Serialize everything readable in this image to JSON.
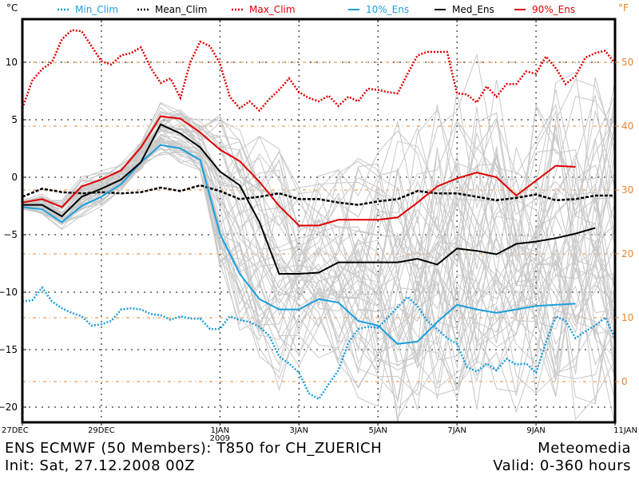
{
  "footer": {
    "title_line": "ENS ECMWF (50 Members): T850 for CH_ZUERICH",
    "init_line": "Init: Sat, 27.12.2008 00Z",
    "source": "Meteomedia",
    "valid_line": "Valid: 0-360 hours"
  },
  "colors": {
    "clim_min": "#1a9fdc",
    "clim_mean": "#000000",
    "clim_max": "#e00000",
    "ens10": "#1a9fdc",
    "ensmed": "#000000",
    "ens90": "#e00000",
    "members": "#c8c8c8",
    "fahrenheit": "#e8832a"
  },
  "chart_data": {
    "type": "line",
    "title": "ENS ECMWF (50 Members): T850 for CH_ZUERICH",
    "ylabel": "°C",
    "ylabel_right": "°F",
    "xlabel": "",
    "x_units": "days since 27DEC 2008 00Z",
    "xlim": [
      0,
      15
    ],
    "ylim": [
      -21,
      13
    ],
    "grid": true,
    "x_ticks": [
      {
        "x": 0,
        "label": "27DEC"
      },
      {
        "x": 2,
        "label": "29DEC"
      },
      {
        "x": 5,
        "label": "1JAN",
        "sub": "2009"
      },
      {
        "x": 7,
        "label": "3JAN"
      },
      {
        "x": 9,
        "label": "5JAN"
      },
      {
        "x": 11,
        "label": "7JAN"
      },
      {
        "x": 13,
        "label": "9JAN"
      },
      {
        "x": 15,
        "label": "11JAN"
      }
    ],
    "y_ticks": [
      -20,
      -15,
      -10,
      -5,
      0,
      5,
      10
    ],
    "y_ticks_right_F": [
      0,
      10,
      20,
      30,
      40,
      50
    ],
    "legend": [
      "Min_Clim",
      "Mean_Clim",
      "Max_Clim",
      "10%_Ens",
      "Med_Ens",
      "90%_Ens"
    ],
    "legend_position": "top",
    "series": [
      {
        "name": "Min_Clim",
        "style": "dotted",
        "color_key": "clim_min",
        "x": [
          0,
          0.25,
          0.5,
          0.75,
          1,
          1.25,
          1.5,
          1.75,
          2,
          2.25,
          2.5,
          2.75,
          3,
          3.25,
          3.5,
          3.75,
          4,
          4.25,
          4.5,
          4.75,
          5,
          5.25,
          5.5,
          5.75,
          6,
          6.25,
          6.5,
          6.75,
          7,
          7.25,
          7.5,
          7.75,
          8,
          8.25,
          8.5,
          8.75,
          9,
          9.25,
          9.5,
          9.75,
          10,
          10.25,
          10.5,
          10.75,
          11,
          11.25,
          11.5,
          11.75,
          12,
          12.25,
          12.5,
          12.75,
          13,
          13.25,
          13.5,
          13.75,
          14,
          14.25,
          14.5,
          14.75,
          15
        ],
        "values": [
          -10.8,
          -10.7,
          -9.6,
          -10.8,
          -11.4,
          -11.8,
          -12.1,
          -12.9,
          -12.8,
          -12.5,
          -11.5,
          -11.4,
          -11.5,
          -11.9,
          -12.0,
          -12.4,
          -12.1,
          -12.3,
          -12.3,
          -13.2,
          -13.2,
          -12.1,
          -12.4,
          -12.6,
          -13.0,
          -13.8,
          -15.6,
          -16.2,
          -17.0,
          -18.8,
          -19.3,
          -18.0,
          -16.8,
          -14.4,
          -13.2,
          -13.0,
          -13.1,
          -12.2,
          -11.3,
          -10.4,
          -11.2,
          -12.5,
          -13.2,
          -14.0,
          -14.5,
          -16.5,
          -16.9,
          -16.2,
          -16.8,
          -15.8,
          -16.3,
          -16.2,
          -17.0,
          -14.4,
          -12.1,
          -12.5,
          -14.0,
          -13.4,
          -12.9,
          -12.2,
          -14.0
        ]
      },
      {
        "name": "Mean_Clim",
        "style": "dashed",
        "color_key": "clim_mean",
        "x": [
          0,
          0.5,
          1,
          1.5,
          2,
          2.5,
          3,
          3.5,
          4,
          4.5,
          5,
          5.5,
          6,
          6.5,
          7,
          7.5,
          8,
          8.5,
          9,
          9.5,
          10,
          10.5,
          11,
          11.5,
          12,
          12.5,
          13,
          13.5,
          14,
          14.5,
          15
        ],
        "values": [
          -1.7,
          -1.0,
          -1.3,
          -1.4,
          -1.3,
          -1.4,
          -1.3,
          -0.9,
          -1.2,
          -0.7,
          -1.2,
          -1.9,
          -1.7,
          -1.4,
          -1.9,
          -1.9,
          -2.2,
          -2.4,
          -2.1,
          -1.9,
          -1.2,
          -1.4,
          -1.4,
          -1.7,
          -2.0,
          -1.8,
          -1.5,
          -2.0,
          -1.9,
          -1.6,
          -1.6
        ]
      },
      {
        "name": "Max_Clim",
        "style": "dotted",
        "color_key": "clim_max",
        "x": [
          0,
          0.25,
          0.5,
          0.75,
          1,
          1.25,
          1.5,
          1.75,
          2,
          2.25,
          2.5,
          2.75,
          3,
          3.25,
          3.5,
          3.75,
          4,
          4.25,
          4.5,
          4.75,
          5,
          5.25,
          5.5,
          5.75,
          6,
          6.25,
          6.5,
          6.75,
          7,
          7.25,
          7.5,
          7.75,
          8,
          8.25,
          8.5,
          8.75,
          9,
          9.25,
          9.5,
          9.75,
          10,
          10.25,
          10.5,
          10.75,
          11,
          11.25,
          11.5,
          11.75,
          12,
          12.25,
          12.5,
          12.75,
          13,
          13.25,
          13.5,
          13.75,
          14,
          14.25,
          14.5,
          14.75,
          15
        ],
        "values": [
          6.0,
          8.4,
          9.4,
          10.0,
          12.0,
          12.8,
          12.7,
          11.4,
          10.1,
          9.8,
          10.6,
          10.8,
          11.3,
          9.5,
          8.2,
          8.6,
          6.9,
          10.0,
          11.8,
          11.4,
          9.9,
          7.0,
          6.0,
          6.6,
          5.8,
          6.8,
          7.6,
          8.6,
          7.4,
          6.9,
          6.6,
          7.1,
          6.2,
          7.0,
          6.6,
          7.7,
          7.6,
          7.4,
          7.3,
          9.0,
          10.6,
          10.9,
          10.9,
          10.9,
          7.3,
          7.2,
          6.5,
          7.9,
          7.0,
          8.1,
          8.1,
          9.2,
          9.0,
          10.5,
          9.5,
          8.1,
          8.8,
          10.4,
          10.8,
          11.0,
          9.9
        ]
      },
      {
        "name": "10%_Ens",
        "style": "solid",
        "color_key": "ens10",
        "x": [
          0,
          0.5,
          1,
          1.5,
          2,
          2.5,
          3,
          3.5,
          4,
          4.5,
          5,
          5.5,
          6,
          6.5,
          7,
          7.5,
          8,
          8.5,
          9,
          9.5,
          10,
          10.5,
          11,
          11.5,
          12,
          12.5,
          13,
          13.5,
          14
        ],
        "values": [
          -2.6,
          -2.8,
          -3.9,
          -2.5,
          -1.7,
          -0.6,
          1.3,
          2.8,
          2.5,
          1.5,
          -4.9,
          -8.4,
          -10.6,
          -11.5,
          -11.5,
          -10.6,
          -10.9,
          -12.5,
          -12.9,
          -14.5,
          -14.3,
          -12.6,
          -11.1,
          -11.5,
          -11.8,
          -11.5,
          -11.2,
          -11.1,
          -11.0
        ]
      },
      {
        "name": "Med_Ens",
        "style": "solid",
        "color_key": "ensmed",
        "x": [
          0,
          0.5,
          1,
          1.5,
          2,
          2.5,
          3,
          3.5,
          4,
          4.5,
          5,
          5.5,
          6,
          6.5,
          7,
          7.5,
          8,
          8.5,
          9,
          9.5,
          10,
          10.5,
          11,
          11.5,
          12,
          12.5,
          13,
          13.5,
          14,
          14.5
        ],
        "values": [
          -2.4,
          -2.4,
          -3.4,
          -1.7,
          -1.0,
          -0.2,
          1.3,
          4.6,
          3.8,
          2.6,
          0.5,
          -0.7,
          -3.9,
          -8.4,
          -8.4,
          -8.3,
          -7.4,
          -7.4,
          -7.4,
          -7.4,
          -7.1,
          -7.6,
          -6.2,
          -6.4,
          -6.7,
          -5.8,
          -5.6,
          -5.3,
          -4.9,
          -4.4
        ]
      },
      {
        "name": "90%_Ens",
        "style": "solid",
        "color_key": "ens90",
        "x": [
          0,
          0.5,
          1,
          1.5,
          2,
          2.5,
          3,
          3.5,
          4,
          4.5,
          5,
          5.5,
          6,
          6.5,
          7,
          7.5,
          8,
          8.5,
          9,
          9.5,
          10,
          10.5,
          11,
          11.5,
          12,
          12.5,
          13,
          13.5,
          14
        ],
        "values": [
          -2.2,
          -1.9,
          -2.6,
          -0.8,
          -0.2,
          0.6,
          2.6,
          5.3,
          5.1,
          3.9,
          2.4,
          1.4,
          -0.4,
          -2.5,
          -4.2,
          -4.2,
          -3.7,
          -3.7,
          -3.7,
          -3.5,
          -2.2,
          -0.8,
          -0.1,
          0.4,
          0.0,
          -1.6,
          -0.3,
          1.0,
          0.9
        ]
      }
    ],
    "members_note": "50 grey ensemble member traces spread between the 10% and 90% lines",
    "members_count": 50
  }
}
